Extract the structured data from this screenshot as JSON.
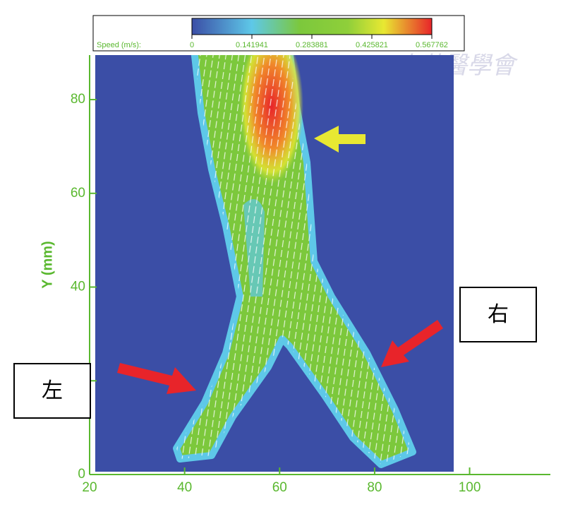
{
  "chart_data": {
    "type": "vector-field",
    "ylabel": "Y (mm)",
    "xlim": [
      20,
      117
    ],
    "xticks": [
      20,
      40,
      60,
      80,
      100
    ],
    "ylim": [
      0,
      89.5
    ],
    "yticks": [
      0,
      20,
      40,
      60,
      80
    ],
    "colorbar": {
      "label": "Speed (m/s):",
      "lim": [
        0,
        0.567762
      ],
      "ticks": [
        0,
        0.141941,
        0.283881,
        0.425821,
        0.567762
      ]
    },
    "annotations": [
      "左",
      "右"
    ],
    "watermark": "中華醫學會"
  }
}
